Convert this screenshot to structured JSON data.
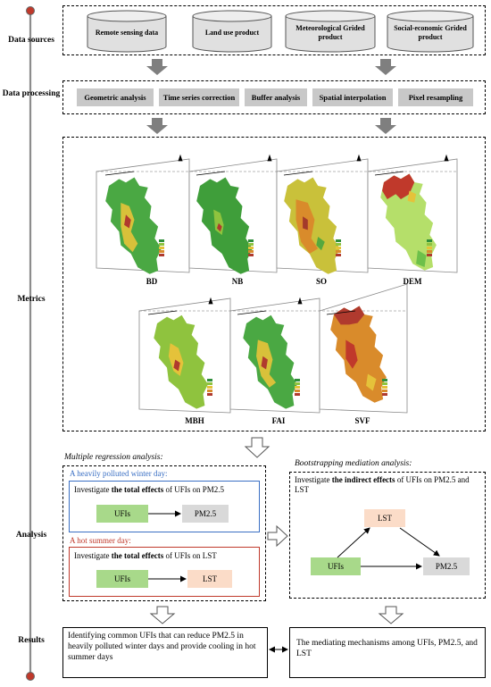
{
  "stages": {
    "data_sources": "Data sources",
    "data_processing": "Data processing",
    "metrics": "Metrics",
    "analysis": "Analysis",
    "results": "Results"
  },
  "data_sources": [
    {
      "label": "Remote sensing data"
    },
    {
      "label": "Land use product"
    },
    {
      "label": "Meteorological Grided product"
    },
    {
      "label": "Social-economic Grided product"
    }
  ],
  "processing_steps": [
    "Geometric analysis",
    "Time series correction",
    "Buffer analysis",
    "Spatial interpolation",
    "Pixel resampling"
  ],
  "metric_maps_row1": [
    "BD",
    "NB",
    "SO",
    "DEM"
  ],
  "metric_maps_row2": [
    "MBH",
    "FAI",
    "SVF"
  ],
  "analysis": {
    "multiple_regression_title": "Multiple regression analysis:",
    "winter_day_title": "A heavily polluted winter day:",
    "winter_text_pre": "Investigate ",
    "winter_text_bold": "the total effects",
    "winter_text_post": " of UFIs on PM2.5",
    "summer_day_title": "A hot summer day:",
    "summer_text_pre": "Investigate ",
    "summer_text_bold": "the total effects",
    "summer_text_post": " of UFIs on LST",
    "ufis": "UFIs",
    "pm25": "PM2.5",
    "lst": "LST",
    "bootstrap_title": "Bootstrapping mediation analysis:",
    "bootstrap_text_pre": "Investigate ",
    "bootstrap_text_bold": "the indirect effects",
    "bootstrap_text_post": " of UFIs on PM2.5 and LST"
  },
  "results": {
    "left": "Identifying common UFIs that can reduce PM2.5 in heavily polluted winter days and provide cooling in hot summer days",
    "right": "The mediating mechanisms among UFIs, PM2.5, and LST"
  },
  "colors": {
    "winter_blue": "#3a6fc4",
    "summer_red": "#c0392b",
    "ufis_green": "#a8d98a",
    "pm25_grey": "#d9d9d9",
    "lst_peach": "#fbdcc8",
    "arrow_grey": "#7f7f7f",
    "process_grey": "#c8c8c8",
    "timeline_dot": "#c0392b"
  }
}
